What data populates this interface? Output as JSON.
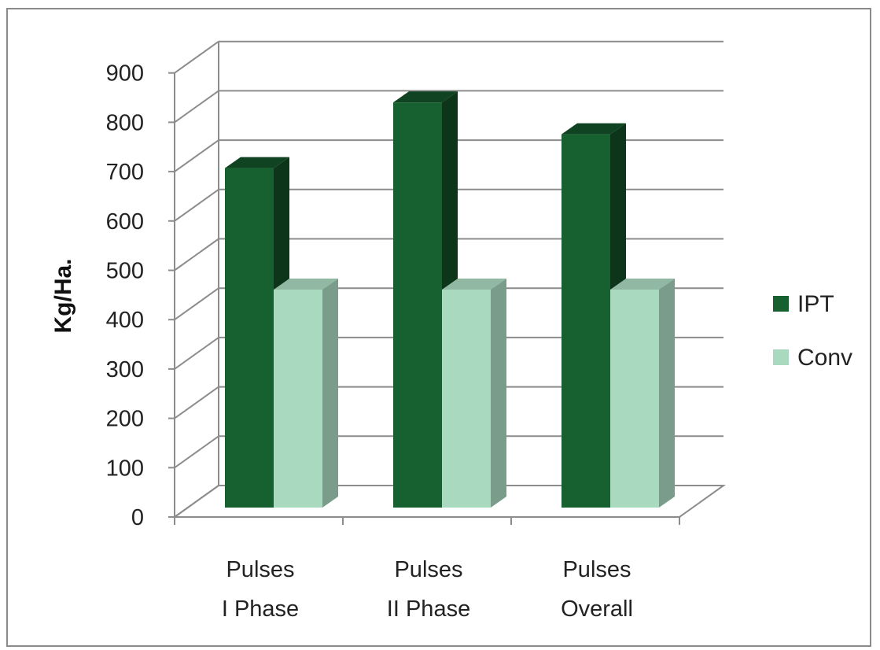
{
  "chart_data": {
    "type": "bar",
    "categories": [
      [
        "Pulses",
        "I Phase"
      ],
      [
        "Pulses",
        "II Phase"
      ],
      [
        "Pulses",
        "Overall"
      ]
    ],
    "series": [
      {
        "name": "IPT",
        "values": [
          693,
          827,
          762
        ],
        "color": "#17602f"
      },
      {
        "name": "Conv",
        "values": [
          445,
          445,
          445
        ],
        "color": "#a9d9bf"
      }
    ],
    "ylabel": "Kg/Ha.",
    "xlabel": "",
    "ylim": [
      0,
      900
    ],
    "yticks": [
      "0",
      "100",
      "200",
      "300",
      "400",
      "500",
      "600",
      "700",
      "800",
      "900"
    ],
    "grid": true,
    "legend_position": "right",
    "style": "3d-clustered-column"
  }
}
